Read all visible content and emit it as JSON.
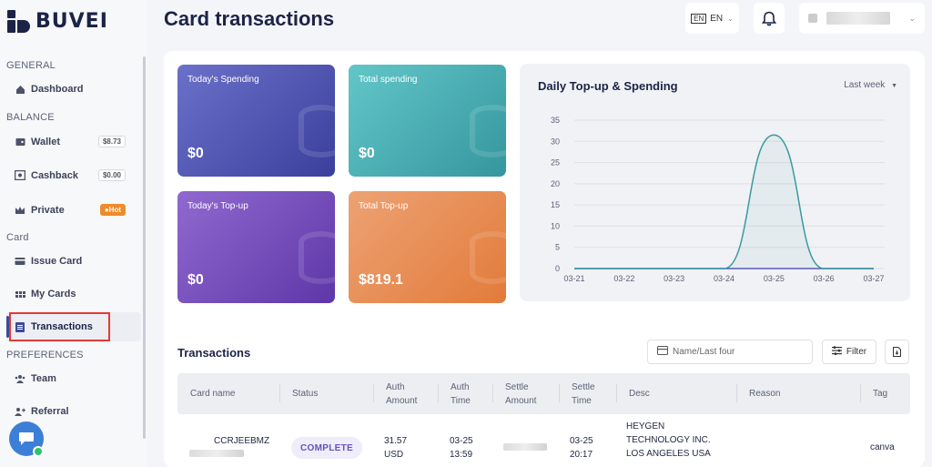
{
  "brand": {
    "name": "BUVEI"
  },
  "header": {
    "title": "Card transactions",
    "lang_flag": "EN",
    "lang_label": "EN"
  },
  "sidebar": {
    "sections": [
      {
        "label": "GENERAL"
      },
      {
        "label": "BALANCE"
      },
      {
        "label": "Card"
      },
      {
        "label": "PREFERENCES"
      }
    ],
    "items": [
      {
        "label": "Dashboard",
        "icon": "home-icon"
      },
      {
        "label": "Wallet",
        "icon": "wallet-icon",
        "badge": "$8.73"
      },
      {
        "label": "Cashback",
        "icon": "cashback-icon",
        "badge": "$0.00"
      },
      {
        "label": "Private",
        "icon": "crown-icon",
        "badge": "Hot"
      },
      {
        "label": "Issue Card",
        "icon": "card-icon"
      },
      {
        "label": "My Cards",
        "icon": "grid-icon"
      },
      {
        "label": "Transactions",
        "icon": "list-icon"
      },
      {
        "label": "Team",
        "icon": "team-icon"
      },
      {
        "label": "Referral",
        "icon": "referral-icon"
      }
    ]
  },
  "stats": [
    {
      "label": "Today's Spending",
      "value": "$0"
    },
    {
      "label": "Total spending",
      "value": "$0"
    },
    {
      "label": "Today's Top-up",
      "value": "$0"
    },
    {
      "label": "Total Top-up",
      "value": "$819.1"
    }
  ],
  "chart_data": {
    "type": "line",
    "title": "Daily Top-up & Spending",
    "period": "Last week",
    "x": [
      "03-21",
      "03-22",
      "03-23",
      "03-24",
      "03-25",
      "03-26",
      "03-27"
    ],
    "series": [
      {
        "values": [
          0,
          0,
          0,
          0,
          31.5,
          0,
          0
        ],
        "color": "#3a9aa0"
      },
      {
        "values": [
          0,
          0,
          0,
          0,
          0,
          0,
          0
        ],
        "color": "#5a55b8"
      }
    ],
    "yticks": [
      0,
      5,
      10,
      15,
      20,
      25,
      30,
      35
    ],
    "ylim": [
      0,
      35
    ]
  },
  "transactions": {
    "title": "Transactions",
    "search_placeholder": "Name/Last four",
    "filter_label": "Filter",
    "columns": {
      "card_name": "Card name",
      "status": "Status",
      "auth_amount_1": "Auth",
      "auth_amount_2": "Amount",
      "auth_time_1": "Auth",
      "auth_time_2": "Time",
      "settle_amount_1": "Settle",
      "settle_amount_2": "Amount",
      "settle_time_1": "Settle",
      "settle_time_2": "Time",
      "desc": "Desc",
      "reason": "Reason",
      "tag": "Tag"
    },
    "rows": [
      {
        "card_name": "CCRJEEBMZ",
        "status": "COMPLETE",
        "auth_amount_value": "31.57",
        "auth_amount_currency": "USD",
        "auth_date": "03-25",
        "auth_clock": "13:59",
        "settle_date": "03-25",
        "settle_clock": "20:17",
        "desc_1": "HEYGEN",
        "desc_2": "TECHNOLOGY INC.",
        "desc_3": "LOS ANGELES USA",
        "tag": "canva"
      }
    ]
  }
}
